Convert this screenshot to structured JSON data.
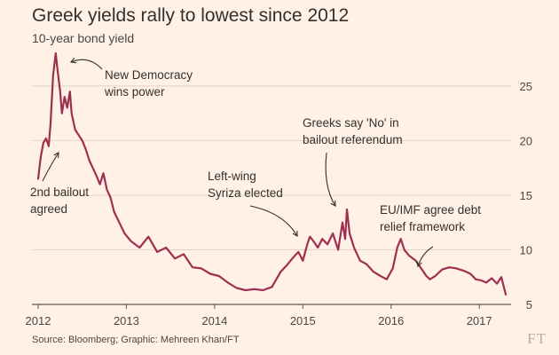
{
  "chart_data": {
    "type": "line",
    "title": "Greek yields rally to lowest since 2012",
    "subtitle": "10-year bond yield",
    "source": "Source: Bloomberg; Graphic: Mehreen Khan/FT",
    "brand": "FT",
    "xlabel": "",
    "ylabel": "",
    "xlim": [
      2011.93,
      2017.32
    ],
    "ylim": [
      5,
      28
    ],
    "y_ticks": [
      5,
      10,
      15,
      20,
      25
    ],
    "x_ticks": [
      {
        "value": 2012,
        "label": "2012"
      },
      {
        "value": 2013,
        "label": "2013"
      },
      {
        "value": 2014,
        "label": "2014"
      },
      {
        "value": 2015,
        "label": "2015"
      },
      {
        "value": 2016,
        "label": "2016"
      },
      {
        "value": 2017,
        "label": "2017"
      }
    ],
    "grid": true,
    "series": [
      {
        "name": "10-year bond yield",
        "color": "#9e2f50",
        "x": [
          2012.0,
          2012.03,
          2012.06,
          2012.09,
          2012.12,
          2012.14,
          2012.17,
          2012.2,
          2012.22,
          2012.25,
          2012.27,
          2012.3,
          2012.33,
          2012.36,
          2012.38,
          2012.42,
          2012.46,
          2012.5,
          2012.54,
          2012.58,
          2012.62,
          2012.66,
          2012.7,
          2012.74,
          2012.78,
          2012.82,
          2012.86,
          2012.92,
          2012.98,
          2013.05,
          2013.15,
          2013.25,
          2013.35,
          2013.45,
          2013.55,
          2013.65,
          2013.75,
          2013.85,
          2013.95,
          2014.05,
          2014.15,
          2014.25,
          2014.35,
          2014.45,
          2014.55,
          2014.65,
          2014.75,
          2014.82,
          2014.88,
          2014.95,
          2015.0,
          2015.05,
          2015.08,
          2015.12,
          2015.17,
          2015.22,
          2015.28,
          2015.34,
          2015.4,
          2015.45,
          2015.48,
          2015.5,
          2015.53,
          2015.58,
          2015.65,
          2015.72,
          2015.8,
          2015.88,
          2015.95,
          2016.02,
          2016.07,
          2016.11,
          2016.15,
          2016.2,
          2016.28,
          2016.35,
          2016.4,
          2016.44,
          2016.5,
          2016.58,
          2016.66,
          2016.74,
          2016.82,
          2016.9,
          2016.96,
          2017.02,
          2017.08,
          2017.14,
          2017.2,
          2017.25,
          2017.3
        ],
        "values": [
          16.5,
          18.5,
          19.8,
          20.2,
          19.5,
          21.5,
          26.0,
          28.0,
          26.5,
          24.5,
          22.5,
          24.0,
          23.0,
          24.5,
          22.5,
          21.0,
          20.5,
          20.0,
          19.2,
          18.2,
          17.5,
          16.8,
          16.0,
          17.0,
          15.5,
          14.8,
          13.5,
          12.5,
          11.5,
          10.8,
          10.2,
          11.2,
          9.8,
          10.2,
          9.2,
          9.6,
          8.4,
          8.3,
          7.8,
          7.6,
          7.0,
          6.5,
          6.3,
          6.4,
          6.3,
          6.6,
          8.0,
          8.6,
          9.2,
          9.8,
          9.0,
          10.5,
          11.2,
          10.8,
          10.2,
          11.0,
          10.5,
          11.5,
          10.0,
          12.5,
          11.0,
          13.7,
          11.5,
          10.2,
          9.0,
          8.7,
          8.0,
          7.6,
          7.3,
          8.3,
          10.2,
          11.0,
          10.0,
          9.5,
          9.0,
          8.2,
          7.6,
          7.3,
          7.6,
          8.2,
          8.4,
          8.3,
          8.1,
          7.8,
          7.3,
          7.2,
          7.0,
          7.4,
          6.9,
          7.5,
          5.9
        ]
      }
    ],
    "annotations": [
      {
        "lines": [
          "New Democracy",
          "wins power"
        ],
        "x": 2012.21,
        "y": 27.6
      },
      {
        "lines": [
          "2nd bailout",
          "agreed"
        ],
        "x": 2012.18,
        "y": 20.0
      },
      {
        "lines": [
          "Left-wing",
          "Syriza elected"
        ],
        "x": 2015.08,
        "y": 11.6
      },
      {
        "lines": [
          "Greeks say 'No' in",
          "bailout referendum"
        ],
        "x": 2015.5,
        "y": 13.7
      },
      {
        "lines": [
          "EU/IMF agree debt",
          "relief framework"
        ],
        "x": 2016.4,
        "y": 7.6
      }
    ]
  }
}
